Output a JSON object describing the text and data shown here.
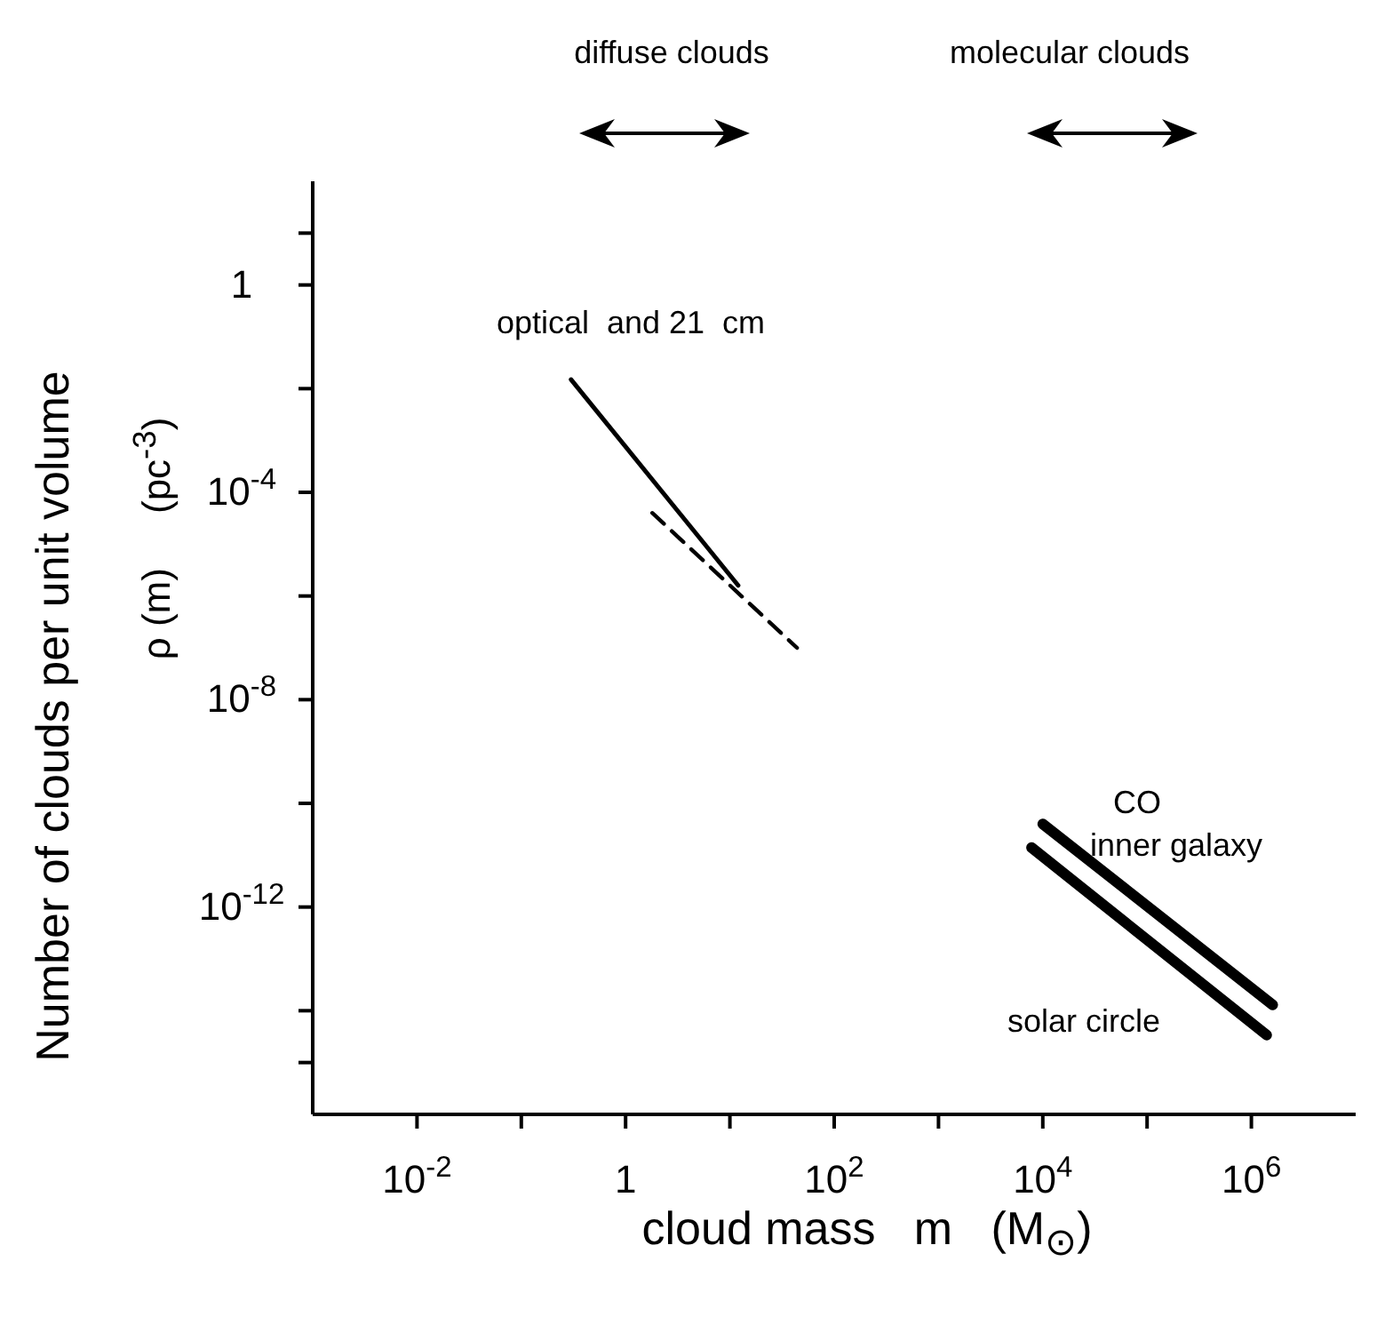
{
  "chart_data": {
    "type": "line",
    "xlabel": "cloud mass   m   (M$_{⊙}$)",
    "ylabel": "Number of clouds per unit volume",
    "subtitle": "ρ (m)     (pc$^{-3}$)",
    "log": "xy",
    "xlim": [
      0.001,
      10000000
    ],
    "ylim": [
      1e-16,
      100
    ],
    "xticks": [
      {
        "value": 0.01,
        "label": "10$^{-2}$"
      },
      {
        "value": 0.1,
        "label": null
      },
      {
        "value": 1,
        "label": "1"
      },
      {
        "value": 10,
        "label": null
      },
      {
        "value": 100,
        "label": "10$^{2}$"
      },
      {
        "value": 1000,
        "label": null
      },
      {
        "value": 10000,
        "label": "10$^{4}$"
      },
      {
        "value": 100000,
        "label": null
      },
      {
        "value": 1000000,
        "label": "10$^{6}$"
      }
    ],
    "yticks": [
      {
        "value": 10,
        "label": null
      },
      {
        "value": 1,
        "label": "1"
      },
      {
        "value": 0.01,
        "label": null
      },
      {
        "value": 0.0001,
        "label": "10$^{-4}$"
      },
      {
        "value": 1e-06,
        "label": null
      },
      {
        "value": 1e-08,
        "label": "10$^{-8}$"
      },
      {
        "value": 1e-10,
        "label": null
      },
      {
        "value": 1e-12,
        "label": "10$^{-12}$"
      },
      {
        "value": 1e-14,
        "label": null
      },
      {
        "value": 1e-15,
        "label": null
      }
    ],
    "grid": false,
    "legend": false,
    "marker": "none",
    "series": [
      {
        "color": "#000000",
        "x": [
          0.3,
          12
        ],
        "values": [
          0.015,
          1.6e-06
        ],
        "line_style": "solid"
      },
      {
        "color": "#000000",
        "x": [
          1.8,
          44
        ],
        "values": [
          4e-05,
          1e-07
        ],
        "line_style": "dashed"
      },
      {
        "color": "#000000",
        "x": [
          10000,
          1600000
        ],
        "values": [
          4e-11,
          1.3e-14
        ],
        "line_style": "solid"
      },
      {
        "color": "#000000",
        "x": [
          7800,
          1400000
        ],
        "values": [
          1.4e-11,
          3.4e-15
        ],
        "line_style": "solid"
      }
    ],
    "annotations": [
      "optical  and 21  cm",
      "CO",
      "inner galaxy",
      "solar circle",
      "diffuse clouds",
      "molecular clouds"
    ]
  }
}
